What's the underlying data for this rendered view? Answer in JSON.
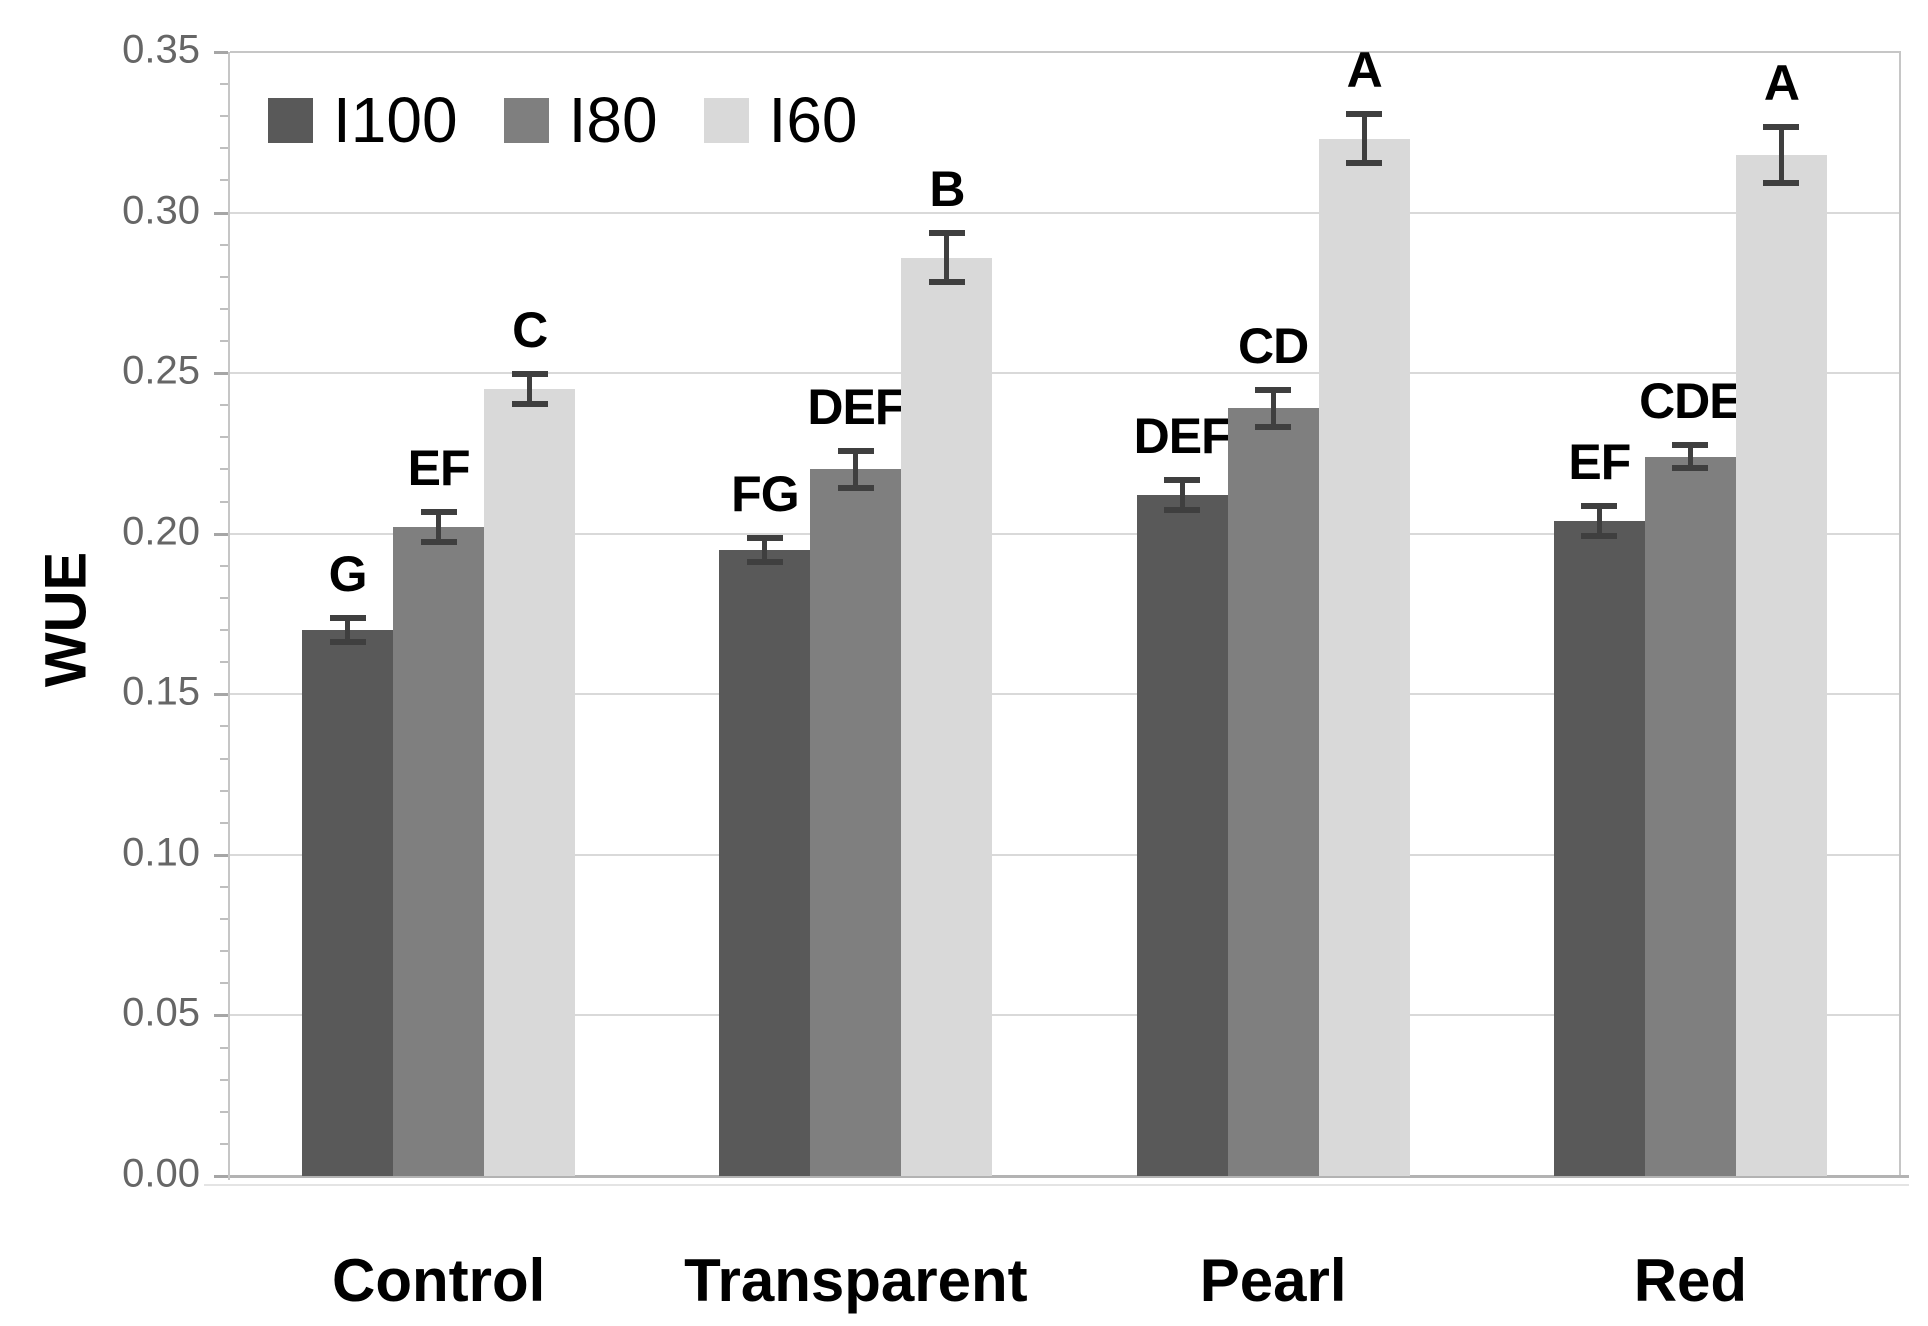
{
  "chart_data": {
    "type": "bar",
    "title": "",
    "xlabel": "",
    "ylabel": "WUE",
    "categories": [
      "Control",
      "Transparent",
      "Pearl",
      "Red"
    ],
    "series": [
      {
        "name": "I100",
        "color": "#595959",
        "values": [
          0.17,
          0.195,
          0.212,
          0.204
        ],
        "errors": [
          0.004,
          0.004,
          0.005,
          0.005
        ],
        "letters": [
          "G",
          "FG",
          "DEF",
          "EF"
        ]
      },
      {
        "name": "I80",
        "color": "#7f7f7f",
        "values": [
          0.202,
          0.22,
          0.239,
          0.224
        ],
        "errors": [
          0.005,
          0.006,
          0.006,
          0.004
        ],
        "letters": [
          "EF",
          "DEF",
          "CD",
          "CDE"
        ]
      },
      {
        "name": "I60",
        "color": "#d9d9d9",
        "values": [
          0.245,
          0.286,
          0.323,
          0.318
        ],
        "errors": [
          0.005,
          0.008,
          0.008,
          0.009
        ],
        "letters": [
          "C",
          "B",
          "A",
          "A"
        ]
      }
    ],
    "ylim": [
      0,
      0.35
    ],
    "ytick_step": 0.05,
    "ytick_labels": [
      "0.00",
      "0.05",
      "0.10",
      "0.15",
      "0.20",
      "0.25",
      "0.30",
      "0.35"
    ],
    "minor_tick_step": 0.01,
    "grid": true,
    "legend_position": "top-left-inside",
    "error_bar_color": "#3f3f3f"
  }
}
